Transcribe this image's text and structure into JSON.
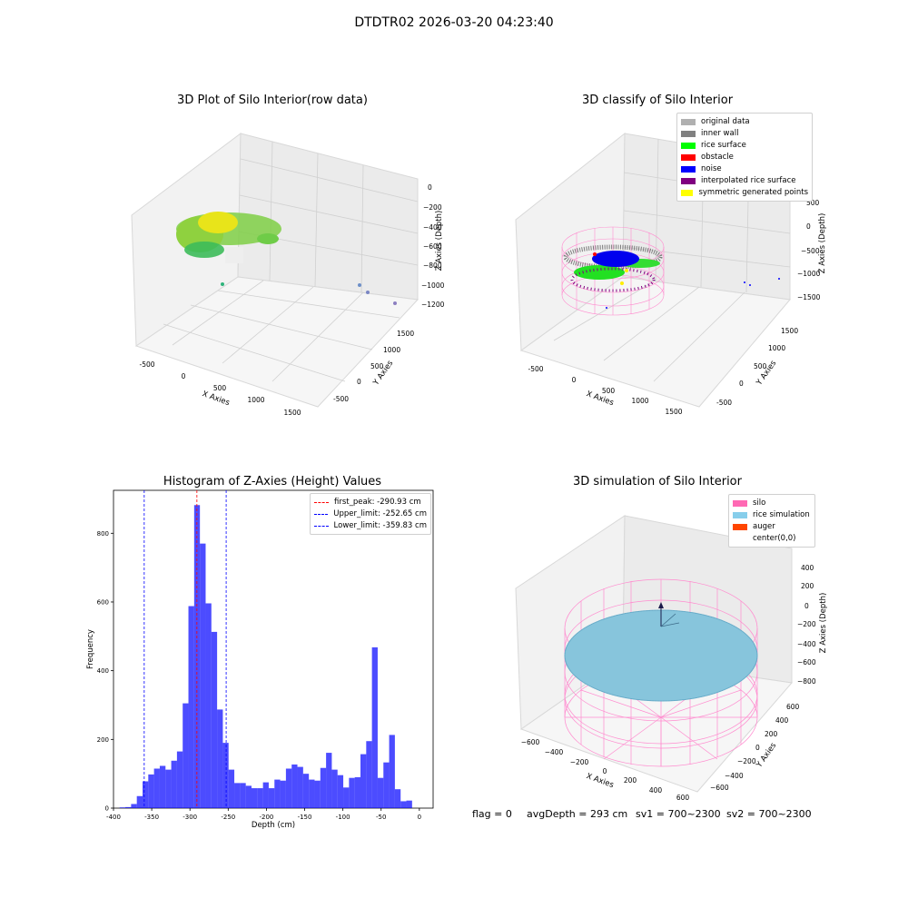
{
  "header": {
    "title": "DTDTR02 2026-03-20 04:23:40"
  },
  "panel_raw": {
    "title": "3D Plot of Silo Interior(row data)",
    "xlabel": "X Axies",
    "ylabel": "Y Axies",
    "zlabel": "Z Axies (Depth)",
    "x_ticks": [
      "-500",
      "0",
      "500",
      "1000",
      "1500"
    ],
    "y_ticks": [
      "-500",
      "0",
      "500",
      "1000",
      "1500"
    ],
    "z_ticks": [
      "0",
      "−200",
      "−400",
      "−600",
      "−800",
      "−1000",
      "−1200"
    ]
  },
  "panel_classify": {
    "title": "3D classify of Silo Interior",
    "xlabel": "X Axies",
    "ylabel": "Y Axies",
    "zlabel": "Z Axies (Depth)",
    "x_ticks": [
      "-500",
      "0",
      "500",
      "1000",
      "1500"
    ],
    "y_ticks": [
      "-500",
      "0",
      "500",
      "1000",
      "1500"
    ],
    "z_ticks": [
      "500",
      "0",
      "−500",
      "−1000",
      "−1500"
    ],
    "legend": [
      {
        "label": "original data",
        "color": "#b0b0b0"
      },
      {
        "label": "inner wall",
        "color": "#808080"
      },
      {
        "label": "rice surface",
        "color": "#00ff00"
      },
      {
        "label": "obstacle",
        "color": "#ff0000"
      },
      {
        "label": "noise",
        "color": "#0000ff"
      },
      {
        "label": "interpolated rice surface",
        "color": "#800080"
      },
      {
        "label": "symmetric generated points",
        "color": "#ffff00"
      }
    ]
  },
  "panel_sim": {
    "title": "3D simulation of Silo Interior",
    "xlabel": "X Axies",
    "ylabel": "Y Axies",
    "zlabel": "Z Axies (Depth)",
    "x_ticks": [
      "−600",
      "−400",
      "−200",
      "0",
      "200",
      "400",
      "600"
    ],
    "y_ticks": [
      "−600",
      "−400",
      "−200",
      "0",
      "200",
      "400",
      "600"
    ],
    "z_ticks": [
      "400",
      "200",
      "0",
      "−200",
      "−400",
      "−600",
      "−800"
    ],
    "legend": [
      {
        "label": "silo",
        "color": "#ff69b4"
      },
      {
        "label": "rice simulation",
        "color": "#87ceeb"
      },
      {
        "label": "auger",
        "color": "#ff4500"
      },
      {
        "label": "center(0,0)",
        "color": "#ffffff"
      }
    ]
  },
  "footer": {
    "flag": "flag = 0",
    "avg": "avgDepth = 293 cm",
    "sv1": "sv1 = 700~2300",
    "sv2": "sv2 = 700~2300"
  },
  "chart_data": {
    "type": "bar",
    "title": "Histogram of Z-Axies (Height) Values",
    "xlabel": "Depth (cm)",
    "ylabel": "Frequency",
    "xlim": [
      -400,
      18
    ],
    "ylim": [
      0,
      925
    ],
    "x_ticks": [
      -400,
      -350,
      -300,
      -250,
      -200,
      -150,
      -100,
      -50,
      0
    ],
    "y_ticks": [
      0,
      200,
      400,
      600,
      800
    ],
    "bar_color": "#0000ff",
    "bin_width": 7.5,
    "bin_start": -392,
    "values": [
      2,
      3,
      12,
      35,
      78,
      98,
      115,
      123,
      112,
      138,
      165,
      305,
      588,
      882,
      770,
      596,
      513,
      287,
      190,
      112,
      73,
      73,
      65,
      58,
      58,
      75,
      58,
      83,
      80,
      115,
      127,
      120,
      100,
      83,
      80,
      117,
      161,
      112,
      96,
      60,
      88,
      90,
      157,
      195,
      468,
      88,
      133,
      213,
      55,
      20,
      22
    ],
    "lines": [
      {
        "name": "first_peak: -290.93 cm",
        "x": -290.93,
        "color": "#ff0000"
      },
      {
        "name": "Upper_limit: -252.65 cm",
        "x": -252.65,
        "color": "#0000ff"
      },
      {
        "name": "Lower_limit: -359.83 cm",
        "x": -359.83,
        "color": "#0000ff"
      }
    ]
  }
}
